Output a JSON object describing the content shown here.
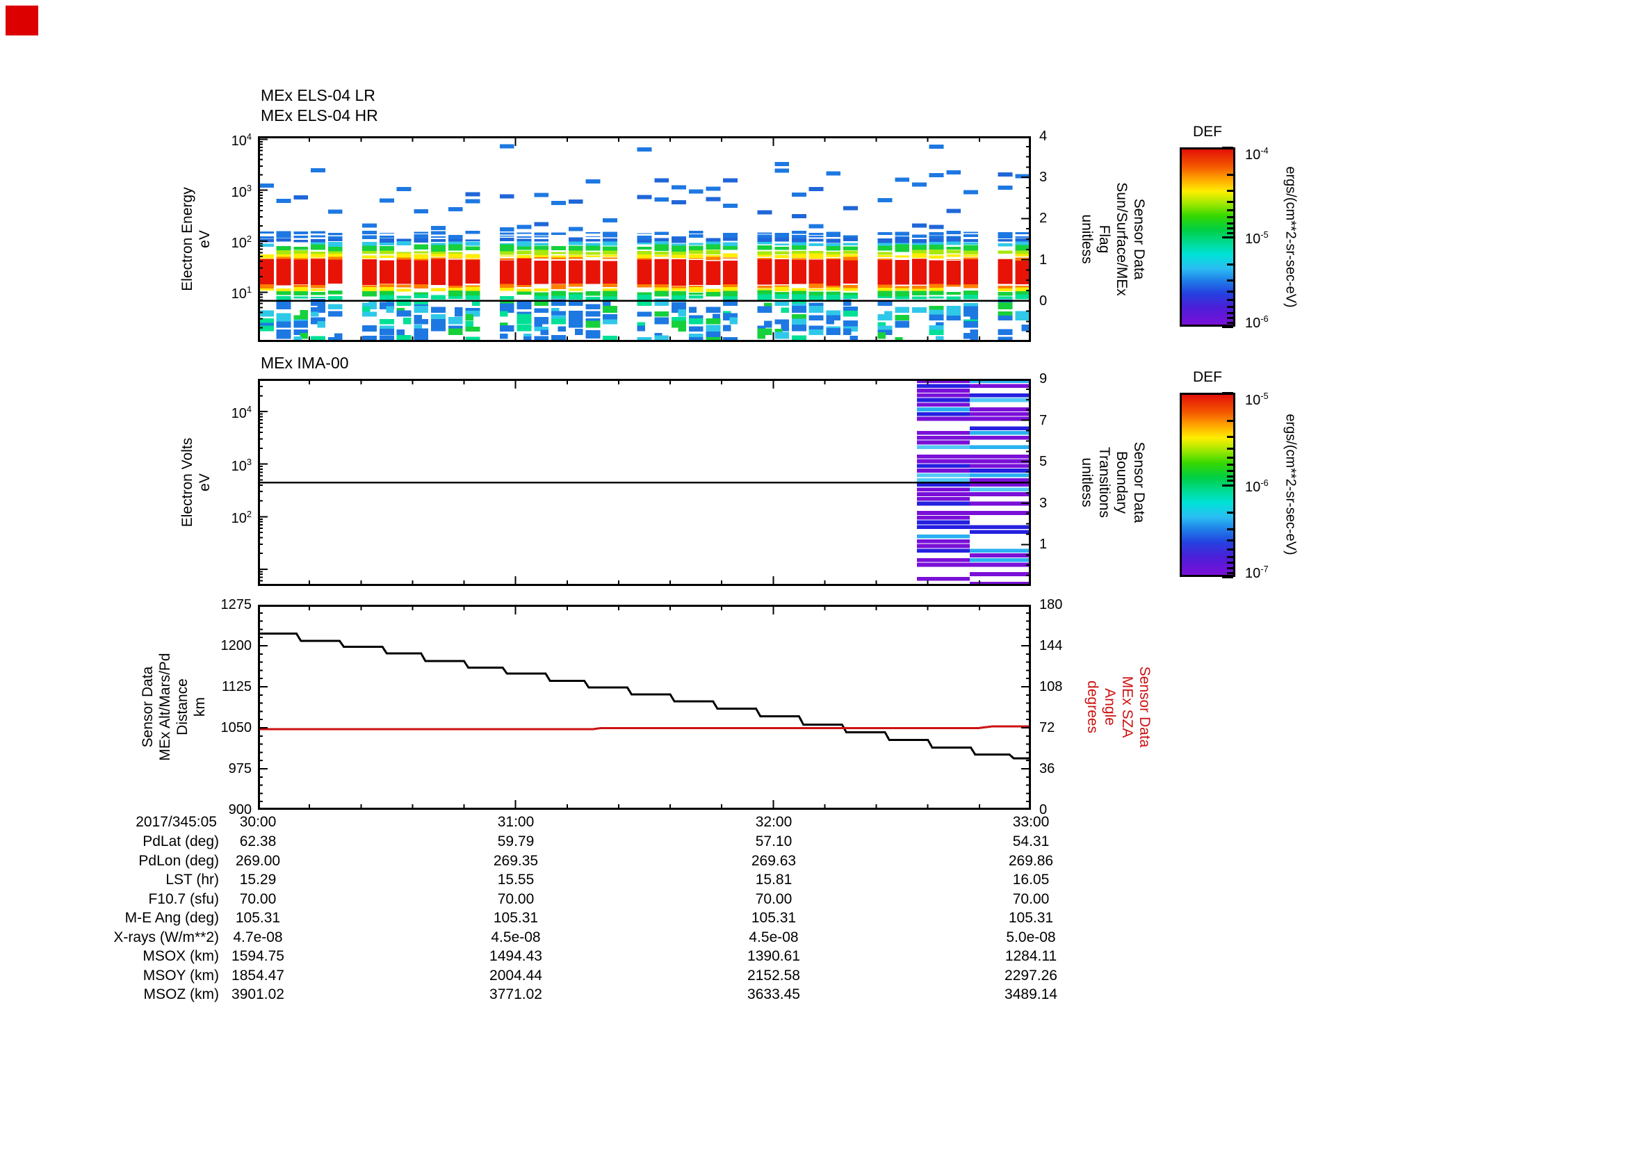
{
  "page": {
    "background": "#ffffff",
    "corner_marker_color": "#dd0000"
  },
  "palette": {
    "red": "#e81307",
    "orange": "#ff7f00",
    "yellow": "#ffee00",
    "ygreen": "#a8e80c",
    "green": "#16d03c",
    "teal": "#00e096",
    "cyan": "#30c8e8",
    "blue": "#1d78e2",
    "blue2": "#1f66d8",
    "ima_purple": "#7a10d8",
    "ima_blue": "#2520e0",
    "ima_cyan": "#2ab0f0",
    "ima_lblue": "#55c8f5",
    "frame": "#000000",
    "sza_red": "#cc1111"
  },
  "chart_data": [
    {
      "id": "els",
      "type": "heatmap",
      "title_lines": [
        "MEx ELS-04 LR",
        "MEx ELS-04 HR"
      ],
      "time_axis": {
        "start_minutes": 0,
        "end_minutes": 180,
        "major_tick_minutes": 60,
        "minor_tick_minutes": 12
      },
      "y_axis": {
        "scale": "log",
        "min": 1.05,
        "max": 11500,
        "label_lines": [
          "Electron Energy",
          "eV"
        ],
        "ticks": [
          {
            "v": 10,
            "label": "10^1"
          },
          {
            "v": 100,
            "label": "10^2"
          },
          {
            "v": 1000,
            "label": "10^3"
          },
          {
            "v": 10000,
            "label": "10^4"
          }
        ]
      },
      "right_axis": {
        "min": -1,
        "max": 4,
        "majors": [
          0,
          1,
          2,
          3,
          4
        ],
        "minor_step": 0.25,
        "label_lines": [
          "Sensor Data",
          "Sun/Surface/MEx",
          "Flag",
          "unitless"
        ]
      },
      "flag_line_value": 0,
      "spectrogram": {
        "seed": 20173455,
        "slots": 45,
        "bar_width_frac": 0.84,
        "missing_slots": [
          5,
          13,
          21,
          28,
          35,
          42
        ],
        "bands": [
          {
            "lo": 135,
            "hi": 152,
            "color": "blue",
            "p": 0.7
          },
          {
            "lo": 115,
            "hi": 131,
            "color": "blue",
            "p": 0.8
          },
          {
            "lo": 96,
            "hi": 113,
            "color": "blue2",
            "p": 0.9
          },
          {
            "lo": 82,
            "hi": 95,
            "color": "cyan",
            "p": 0.85
          },
          {
            "lo": 65,
            "hi": 82,
            "color": "green",
            "p": 0.95
          },
          {
            "lo": 55,
            "hi": 65,
            "color": "ygreen",
            "p": 0.9
          },
          {
            "lo": 47,
            "hi": 55,
            "color": "yellow",
            "p": 0.92
          },
          {
            "lo": 43,
            "hi": 47,
            "color": "orange",
            "p": 0.85
          },
          {
            "lo": 14,
            "hi": 43,
            "color": "red",
            "p": 1.0
          },
          {
            "lo": 12,
            "hi": 14,
            "color": "orange",
            "p": 0.9
          },
          {
            "lo": 10.3,
            "hi": 12,
            "color": "yellow",
            "p": 0.8
          },
          {
            "lo": 8.6,
            "hi": 10.3,
            "color": "green",
            "p": 0.9
          },
          {
            "lo": 7.2,
            "hi": 8.6,
            "color": "teal",
            "p": 0.75
          }
        ],
        "low_scatter": {
          "centers": [
            6.2,
            5.3,
            4.5,
            3.8,
            3.2,
            2.7,
            2.3,
            1.95,
            1.65,
            1.4,
            1.2
          ],
          "p": 0.55,
          "colors": [
            [
              "blue",
              0.5
            ],
            [
              "cyan",
              0.22
            ],
            [
              "green",
              0.16
            ],
            [
              "teal",
              0.12
            ]
          ]
        },
        "high_scatter": {
          "p1": 0.75,
          "range1": [
            160,
            2500
          ],
          "p2": 0.22,
          "range2": [
            3000,
            9500
          ]
        }
      },
      "colorbar": {
        "title": "DEF",
        "top": "10^-4",
        "mid": "10^-5",
        "bottom": "10^-6",
        "unit": "ergs/(cm**2-sr-sec-eV)",
        "log_decades": 2
      }
    },
    {
      "id": "ima",
      "type": "heatmap",
      "title_lines": [
        "MEx IMA-00"
      ],
      "time_axis": {
        "start_minutes": 0,
        "end_minutes": 180,
        "major_tick_minutes": 60,
        "minor_tick_minutes": 12
      },
      "y_axis": {
        "scale": "log",
        "min": 4.8,
        "max": 42000,
        "label_lines": [
          "Electron Volts",
          "eV"
        ],
        "ticks": [
          {
            "v": 100,
            "label": "10^2"
          },
          {
            "v": 1000,
            "label": "10^3"
          },
          {
            "v": 10000,
            "label": "10^4"
          }
        ]
      },
      "right_axis": {
        "min": -1,
        "max": 9,
        "majors": [
          1,
          3,
          5,
          7,
          9
        ],
        "minor_step": 0.5,
        "label_lines": [
          "Sensor Data",
          "Boundary",
          "Transitions",
          "unitless"
        ]
      },
      "transitions_line_value": 4,
      "stripes": {
        "seed": 99173455,
        "rows": 44,
        "p_present": 0.75,
        "columns": [
          {
            "x0": 0.8525,
            "x1": 0.9209
          },
          {
            "x0": 0.9209,
            "x1": 1.0
          }
        ],
        "colors": [
          [
            "ima_purple",
            0.55
          ],
          [
            "ima_blue",
            0.3
          ],
          [
            "ima_cyan",
            0.1
          ],
          [
            "ima_lblue",
            0.05
          ]
        ]
      },
      "colorbar": {
        "title": "DEF",
        "top": "10^-5",
        "mid": "10^-6",
        "bottom": "10^-7",
        "unit": "ergs/(cm**2-sr-sec-eV)",
        "log_decades": 2
      }
    },
    {
      "id": "eph",
      "type": "line",
      "y_axis": {
        "scale": "linear",
        "min": 900,
        "max": 1275,
        "majors": [
          900,
          975,
          1050,
          1125,
          1200,
          1275
        ],
        "minor_step": 15,
        "label_lines": [
          "Sensor Data",
          "MEx Alt/Mars/Pd",
          "Distance",
          "km"
        ]
      },
      "right_axis": {
        "min": 0,
        "max": 180,
        "majors": [
          0,
          36,
          72,
          108,
          144,
          180
        ],
        "minor_step": 7.2,
        "label_lines": [
          "Sensor Data",
          "MEx SZA",
          "Angle",
          "degrees"
        ],
        "color": "#cc1111"
      },
      "time_axis": {
        "major_tick_minutes": 60,
        "minor_tick_minutes": 12,
        "tick_labels": [
          "30:00",
          "31:00",
          "32:00",
          "33:00"
        ],
        "date_label": "2017/345:05"
      },
      "series": [
        {
          "name": "MEx Alt/Mars/Pd Distance",
          "axis": "left",
          "color": "#000000",
          "points": [
            [
              0,
              1222
            ],
            [
              9,
              1222
            ],
            [
              10,
              1209
            ],
            [
              19,
              1209
            ],
            [
              20,
              1198
            ],
            [
              29,
              1198
            ],
            [
              30,
              1186
            ],
            [
              38,
              1186
            ],
            [
              39,
              1172
            ],
            [
              48,
              1172
            ],
            [
              49,
              1160
            ],
            [
              57,
              1160
            ],
            [
              58,
              1149
            ],
            [
              67,
              1149
            ],
            [
              68,
              1136
            ],
            [
              76,
              1136
            ],
            [
              77,
              1124
            ],
            [
              86,
              1124
            ],
            [
              87,
              1111
            ],
            [
              96,
              1111
            ],
            [
              97,
              1098
            ],
            [
              106,
              1098
            ],
            [
              107,
              1085
            ],
            [
              116,
              1085
            ],
            [
              117,
              1071
            ],
            [
              126,
              1071
            ],
            [
              127,
              1056
            ],
            [
              136,
              1056
            ],
            [
              137,
              1042
            ],
            [
              146,
              1042
            ],
            [
              147,
              1028
            ],
            [
              156,
              1028
            ],
            [
              157,
              1014
            ],
            [
              166,
              1014
            ],
            [
              167,
              1001
            ],
            [
              175,
              1001
            ],
            [
              176,
              994
            ],
            [
              180,
              994
            ]
          ]
        },
        {
          "name": "MEx SZA Angle",
          "axis": "right",
          "color": "#cc1111",
          "points": [
            [
              0,
              70.8
            ],
            [
              78,
              70.8
            ],
            [
              80,
              71.8
            ],
            [
              168,
              71.8
            ],
            [
              171,
              73.2
            ],
            [
              180,
              73.2
            ]
          ]
        }
      ]
    }
  ],
  "table": {
    "date_label": "2017/345:05",
    "time_labels": [
      "30:00",
      "31:00",
      "32:00",
      "33:00"
    ],
    "row_labels": [
      "PdLat (deg)",
      "PdLon (deg)",
      "LST (hr)",
      "F10.7 (sfu)",
      "M-E Ang (deg)",
      "X-rays (W/m**2)",
      "MSOX (km)",
      "MSOY (km)",
      "MSOZ (km)"
    ],
    "columns": [
      [
        "62.38",
        "269.00",
        "15.29",
        "70.00",
        "105.31",
        "4.7e-08",
        "1594.75",
        "1854.47",
        "3901.02"
      ],
      [
        "59.79",
        "269.35",
        "15.55",
        "70.00",
        "105.31",
        "4.5e-08",
        "1494.43",
        "2004.44",
        "3771.02"
      ],
      [
        "57.10",
        "269.63",
        "15.81",
        "70.00",
        "105.31",
        "4.5e-08",
        "1390.61",
        "2152.58",
        "3633.45"
      ],
      [
        "54.31",
        "269.86",
        "16.05",
        "70.00",
        "105.31",
        "5.0e-08",
        "1284.11",
        "2297.26",
        "3489.14"
      ]
    ]
  }
}
